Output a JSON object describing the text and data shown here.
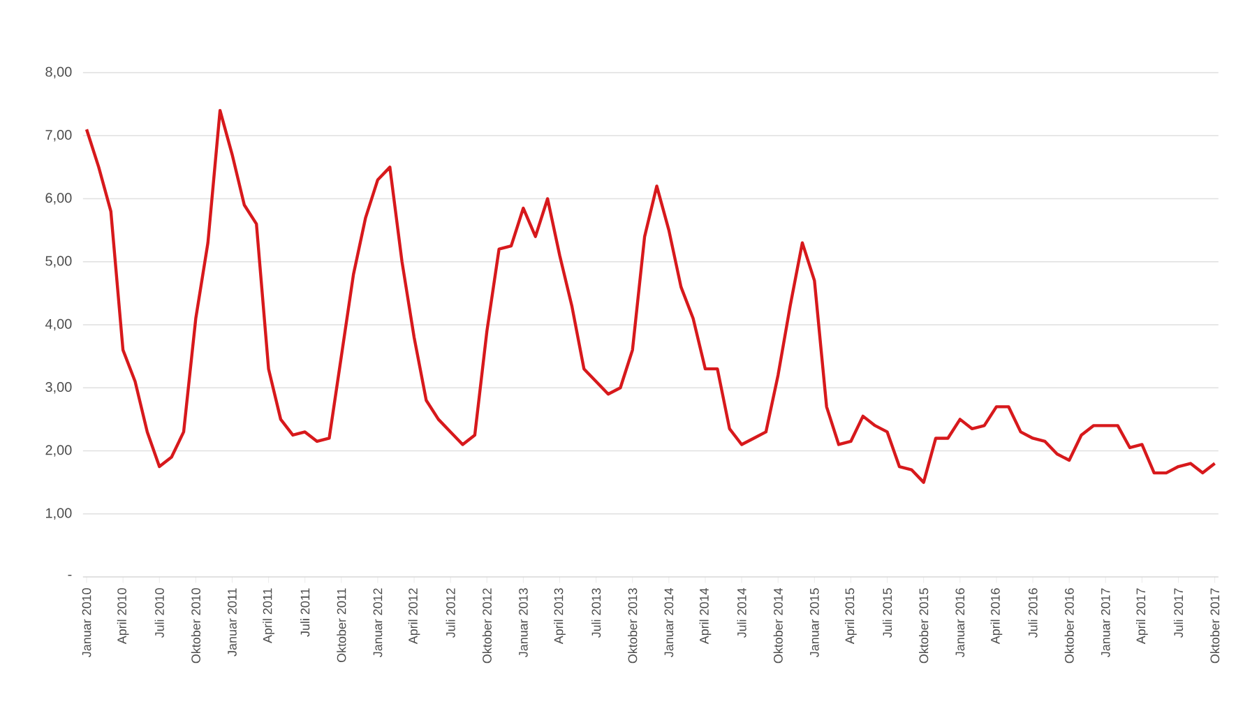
{
  "chart_data": {
    "type": "line",
    "categories": [
      "Januar 2010",
      null,
      null,
      "April 2010",
      null,
      null,
      "Juli 2010",
      null,
      null,
      "Oktober 2010",
      null,
      null,
      "Januar 2011",
      null,
      null,
      "April 2011",
      null,
      null,
      "Juli 2011",
      null,
      null,
      "Oktober 2011",
      null,
      null,
      "Januar 2012",
      null,
      null,
      "April 2012",
      null,
      null,
      "Juli 2012",
      null,
      null,
      "Oktober 2012",
      null,
      null,
      "Januar 2013",
      null,
      null,
      "April 2013",
      null,
      null,
      "Juli 2013",
      null,
      null,
      "Oktober 2013",
      null,
      null,
      "Januar 2014",
      null,
      null,
      "April 2014",
      null,
      null,
      "Juli 2014",
      null,
      null,
      "Oktober 2014",
      null,
      null,
      "Januar 2015",
      null,
      null,
      "April 2015",
      null,
      null,
      "Juli 2015",
      null,
      null,
      "Oktober 2015",
      null,
      null,
      "Januar 2016",
      null,
      null,
      "April 2016",
      null,
      null,
      "Juli 2016",
      null,
      null,
      "Oktober 2016",
      null,
      null,
      "Januar 2017",
      null,
      null,
      "April 2017",
      null,
      null,
      "Juli 2017",
      null,
      null,
      "Oktober 2017"
    ],
    "series": [
      {
        "color": "#d7191c",
        "values": [
          7.1,
          6.5,
          5.8,
          3.6,
          3.1,
          2.3,
          1.75,
          1.9,
          2.3,
          4.1,
          5.3,
          7.4,
          6.7,
          5.9,
          5.6,
          3.3,
          2.5,
          2.25,
          2.3,
          2.15,
          2.2,
          3.5,
          4.8,
          5.7,
          6.3,
          6.5,
          5.0,
          3.8,
          2.8,
          2.5,
          2.3,
          2.1,
          2.25,
          3.9,
          5.2,
          5.25,
          5.85,
          5.4,
          6.0,
          5.1,
          4.3,
          3.3,
          3.1,
          2.9,
          3.0,
          3.6,
          5.4,
          6.2,
          5.5,
          4.6,
          4.1,
          3.3,
          3.3,
          2.35,
          2.1,
          2.2,
          2.3,
          3.2,
          4.3,
          5.3,
          4.7,
          2.7,
          2.1,
          2.15,
          2.55,
          2.4,
          2.3,
          1.75,
          1.7,
          1.5,
          2.2,
          2.2,
          2.5,
          2.35,
          2.4,
          2.7,
          2.7,
          2.3,
          2.2,
          2.15,
          1.95,
          1.85,
          2.25,
          2.4,
          2.4,
          2.4,
          2.05,
          2.1,
          1.65,
          1.65,
          1.75,
          1.8,
          1.65,
          1.8
        ]
      }
    ],
    "ylim": [
      0,
      8
    ],
    "yticks": [
      {
        "value": 0,
        "label": "-"
      },
      {
        "value": 1,
        "label": "1,00"
      },
      {
        "value": 2,
        "label": "2,00"
      },
      {
        "value": 3,
        "label": "3,00"
      },
      {
        "value": 4,
        "label": "4,00"
      },
      {
        "value": 5,
        "label": "5,00"
      },
      {
        "value": 6,
        "label": "6,00"
      },
      {
        "value": 7,
        "label": "7,00"
      },
      {
        "value": 8,
        "label": "8,00"
      }
    ],
    "grid": "y",
    "marker": "none",
    "line_style": "solid"
  }
}
